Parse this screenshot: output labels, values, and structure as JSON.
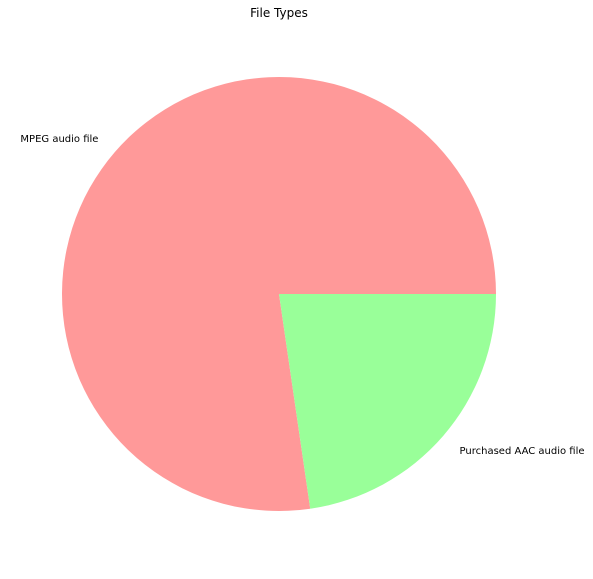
{
  "chart_data": {
    "type": "pie",
    "title": "File Types",
    "categories": [
      "MPEG audio file",
      "Purchased AAC audio file"
    ],
    "values": [
      77.3,
      22.7
    ],
    "colors": [
      "#ff9999",
      "#99ff99"
    ],
    "start_angle_deg": 0,
    "direction": "counterclockwise"
  }
}
